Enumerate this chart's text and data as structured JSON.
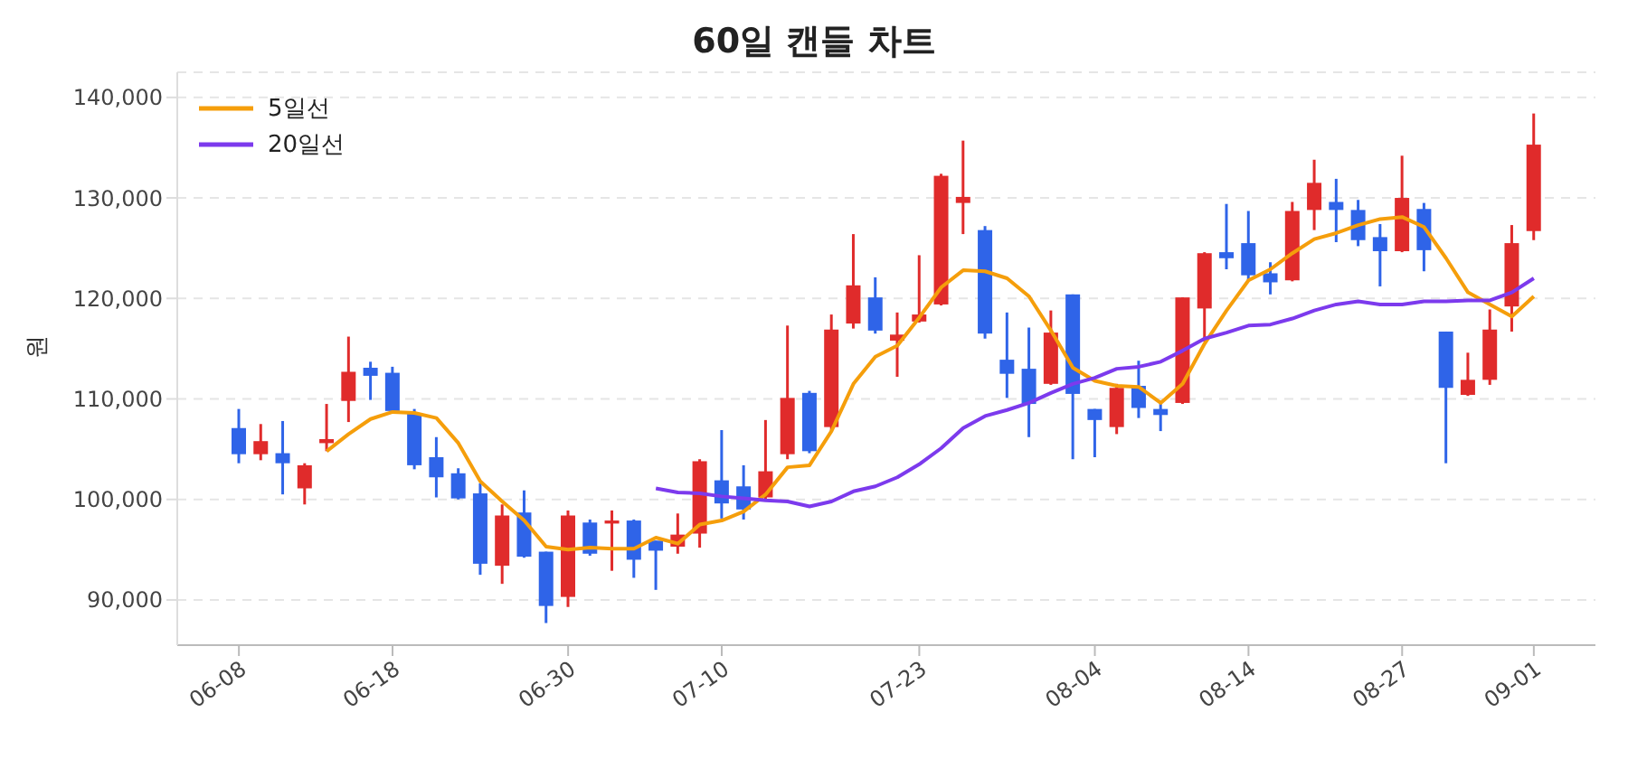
{
  "chart_data": {
    "type": "candlestick",
    "title": "60일 캔들 차트",
    "ylabel": "원",
    "categories": [
      "06-08",
      null,
      null,
      null,
      null,
      null,
      null,
      "06-18",
      null,
      null,
      null,
      null,
      null,
      null,
      null,
      "06-30",
      null,
      null,
      null,
      null,
      null,
      null,
      "07-10",
      null,
      null,
      null,
      null,
      null,
      null,
      null,
      null,
      "07-23",
      null,
      null,
      null,
      null,
      null,
      null,
      null,
      "08-04",
      null,
      null,
      null,
      null,
      null,
      null,
      "08-14",
      null,
      null,
      null,
      null,
      null,
      null,
      "08-27",
      null,
      null,
      null,
      null,
      null,
      "09-01"
    ],
    "ohlc": [
      [
        107100,
        109000,
        103600,
        104500
      ],
      [
        104500,
        107500,
        103900,
        105800
      ],
      [
        104600,
        107800,
        100500,
        103600
      ],
      [
        101100,
        103600,
        99500,
        103400
      ],
      [
        105600,
        109500,
        104800,
        106000
      ],
      [
        109800,
        116200,
        107700,
        112700
      ],
      [
        113100,
        113700,
        109900,
        112300
      ],
      [
        112600,
        113200,
        108700,
        108800
      ],
      [
        108600,
        109000,
        103000,
        103400
      ],
      [
        104200,
        106200,
        100200,
        102200
      ],
      [
        102600,
        103100,
        100000,
        100100
      ],
      [
        100600,
        101600,
        92500,
        93600
      ],
      [
        93400,
        99500,
        91600,
        98400
      ],
      [
        98700,
        100900,
        94200,
        94300
      ],
      [
        94800,
        94800,
        87700,
        89400
      ],
      [
        90300,
        98900,
        89300,
        98400
      ],
      [
        97700,
        98000,
        94400,
        94600
      ],
      [
        97600,
        98900,
        92900,
        97900
      ],
      [
        97900,
        98000,
        92200,
        94000
      ],
      [
        95900,
        95900,
        91000,
        94900
      ],
      [
        95300,
        98600,
        94600,
        96500
      ],
      [
        96600,
        104000,
        95200,
        103800
      ],
      [
        101900,
        106900,
        98100,
        99600
      ],
      [
        101300,
        103400,
        98000,
        99000
      ],
      [
        100200,
        107900,
        100000,
        102800
      ],
      [
        104500,
        117300,
        104000,
        110100
      ],
      [
        110600,
        110800,
        104600,
        104800
      ],
      [
        107200,
        118400,
        106800,
        116900
      ],
      [
        117500,
        126400,
        117000,
        121300
      ],
      [
        120100,
        122100,
        116500,
        116800
      ],
      [
        115800,
        118600,
        112200,
        116400
      ],
      [
        117700,
        124300,
        117600,
        118400
      ],
      [
        119400,
        132400,
        119300,
        132200
      ],
      [
        129500,
        135700,
        126400,
        130100
      ],
      [
        126800,
        127200,
        116000,
        116500
      ],
      [
        113900,
        118600,
        110100,
        112500
      ],
      [
        113000,
        117100,
        106200,
        109500
      ],
      [
        111500,
        118800,
        111400,
        116600
      ],
      [
        120400,
        120400,
        104000,
        110500
      ],
      [
        109000,
        109000,
        104200,
        107900
      ],
      [
        107200,
        111500,
        106500,
        111100
      ],
      [
        111300,
        113800,
        108100,
        109100
      ],
      [
        109000,
        109800,
        106800,
        108400
      ],
      [
        109600,
        120100,
        109500,
        120100
      ],
      [
        119000,
        124600,
        115700,
        124500
      ],
      [
        124600,
        129400,
        122900,
        124000
      ],
      [
        125500,
        128700,
        121800,
        122300
      ],
      [
        122500,
        123600,
        120400,
        121600
      ],
      [
        121800,
        129600,
        121700,
        128700
      ],
      [
        128800,
        133800,
        126800,
        131500
      ],
      [
        129600,
        131900,
        125600,
        128800
      ],
      [
        128800,
        129800,
        125200,
        125800
      ],
      [
        126100,
        127400,
        121200,
        124700
      ],
      [
        124700,
        134200,
        124600,
        130000
      ],
      [
        128900,
        129500,
        122700,
        124800
      ],
      [
        116700,
        116700,
        103600,
        111100
      ],
      [
        110400,
        114600,
        110300,
        111900
      ],
      [
        111900,
        118900,
        111400,
        116900
      ],
      [
        119200,
        127300,
        116700,
        125500
      ],
      [
        126700,
        138400,
        125800,
        135300
      ]
    ],
    "colors": [
      "#2f64e8",
      "#e02b2b",
      "#2f64e8",
      "#e02b2b",
      "#e02b2b",
      "#e02b2b",
      "#2f64e8",
      "#2f64e8",
      "#2f64e8",
      "#2f64e8",
      "#2f64e8",
      "#2f64e8",
      "#e02b2b",
      "#2f64e8",
      "#2f64e8",
      "#e02b2b",
      "#2f64e8",
      "#e02b2b",
      "#2f64e8",
      "#2f64e8",
      "#e02b2b",
      "#e02b2b",
      "#2f64e8",
      "#2f64e8",
      "#e02b2b",
      "#e02b2b",
      "#2f64e8",
      "#e02b2b",
      "#e02b2b",
      "#2f64e8",
      "#e02b2b",
      "#e02b2b",
      "#e02b2b",
      "#e02b2b",
      "#2f64e8",
      "#2f64e8",
      "#2f64e8",
      "#e02b2b",
      "#2f64e8",
      "#2f64e8",
      "#e02b2b",
      "#2f64e8",
      "#2f64e8",
      "#e02b2b",
      "#e02b2b",
      "#2f64e8",
      "#2f64e8",
      "#2f64e8",
      "#e02b2b",
      "#e02b2b",
      "#2f64e8",
      "#2f64e8",
      "#2f64e8",
      "#e02b2b",
      "#2f64e8",
      "#2f64e8",
      "#e02b2b",
      "#e02b2b",
      "#e02b2b",
      "#e02b2b"
    ],
    "series": [
      {
        "name": "5일선",
        "type": "line",
        "color": "#f59e0b",
        "values": [
          null,
          null,
          null,
          null,
          104800,
          106500,
          108000,
          108700,
          108600,
          108100,
          105600,
          101800,
          99800,
          97900,
          95300,
          95000,
          95200,
          95100,
          95100,
          96200,
          95600,
          97500,
          97900,
          98800,
          100500,
          103200,
          103400,
          106800,
          111500,
          114200,
          115300,
          118100,
          121100,
          122800,
          122700,
          122000,
          120200,
          116800,
          113100,
          111800,
          111300,
          111200,
          109600,
          111500,
          115500,
          118800,
          121800,
          122900,
          124500,
          125900,
          126500,
          127300,
          127900,
          128100,
          127100,
          124000,
          120600,
          119400,
          118200,
          120200
        ]
      },
      {
        "name": "20일선",
        "type": "line",
        "color": "#7c3aed",
        "values": [
          null,
          null,
          null,
          null,
          null,
          null,
          null,
          null,
          null,
          null,
          null,
          null,
          null,
          null,
          null,
          null,
          null,
          null,
          null,
          101100,
          100700,
          100600,
          100300,
          100100,
          99900,
          99800,
          99300,
          99800,
          100800,
          101300,
          102200,
          103500,
          105100,
          107100,
          108300,
          108900,
          109600,
          110600,
          111500,
          112100,
          113000,
          113200,
          113700,
          114800,
          116000,
          116600,
          117300,
          117400,
          118000,
          118800,
          119400,
          119700,
          119400,
          119400,
          119700,
          119700,
          119800,
          119800,
          120600,
          122000
        ]
      }
    ],
    "ylim": [
      85500,
      142500
    ],
    "yticks": [
      {
        "value": 90000,
        "label": "90,000"
      },
      {
        "value": 100000,
        "label": "100,000"
      },
      {
        "value": 110000,
        "label": "110,000"
      },
      {
        "value": 120000,
        "label": "120,000"
      },
      {
        "value": 130000,
        "label": "130,000"
      },
      {
        "value": 140000,
        "label": "140,000"
      }
    ],
    "grid": "y",
    "legend": "top left"
  }
}
